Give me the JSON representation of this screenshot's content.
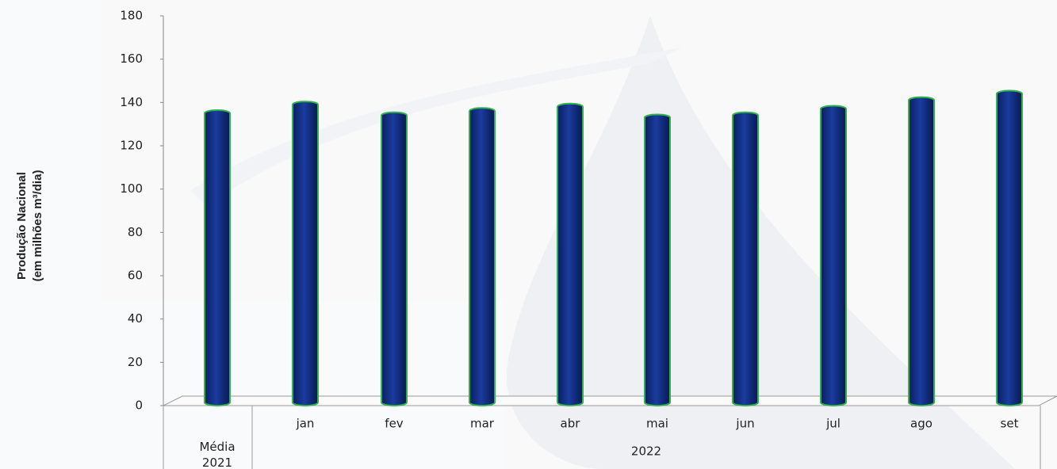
{
  "chart_data": {
    "type": "bar",
    "y_label": [
      "Produção Nacional",
      "(em milhões m³/dia)"
    ],
    "categories": [
      "Média 2021",
      "jan",
      "fev",
      "mar",
      "abr",
      "mai",
      "jun",
      "jul",
      "ago",
      "set"
    ],
    "group_label": "2022",
    "values": [
      135,
      139,
      134,
      136,
      138,
      133,
      134,
      137,
      141,
      144
    ],
    "color": "#12308a",
    "edge_color": "#2fb24c",
    "ylim": [
      0,
      180
    ],
    "yticks": [
      0,
      20,
      40,
      60,
      80,
      100,
      120,
      140,
      160,
      180
    ]
  }
}
